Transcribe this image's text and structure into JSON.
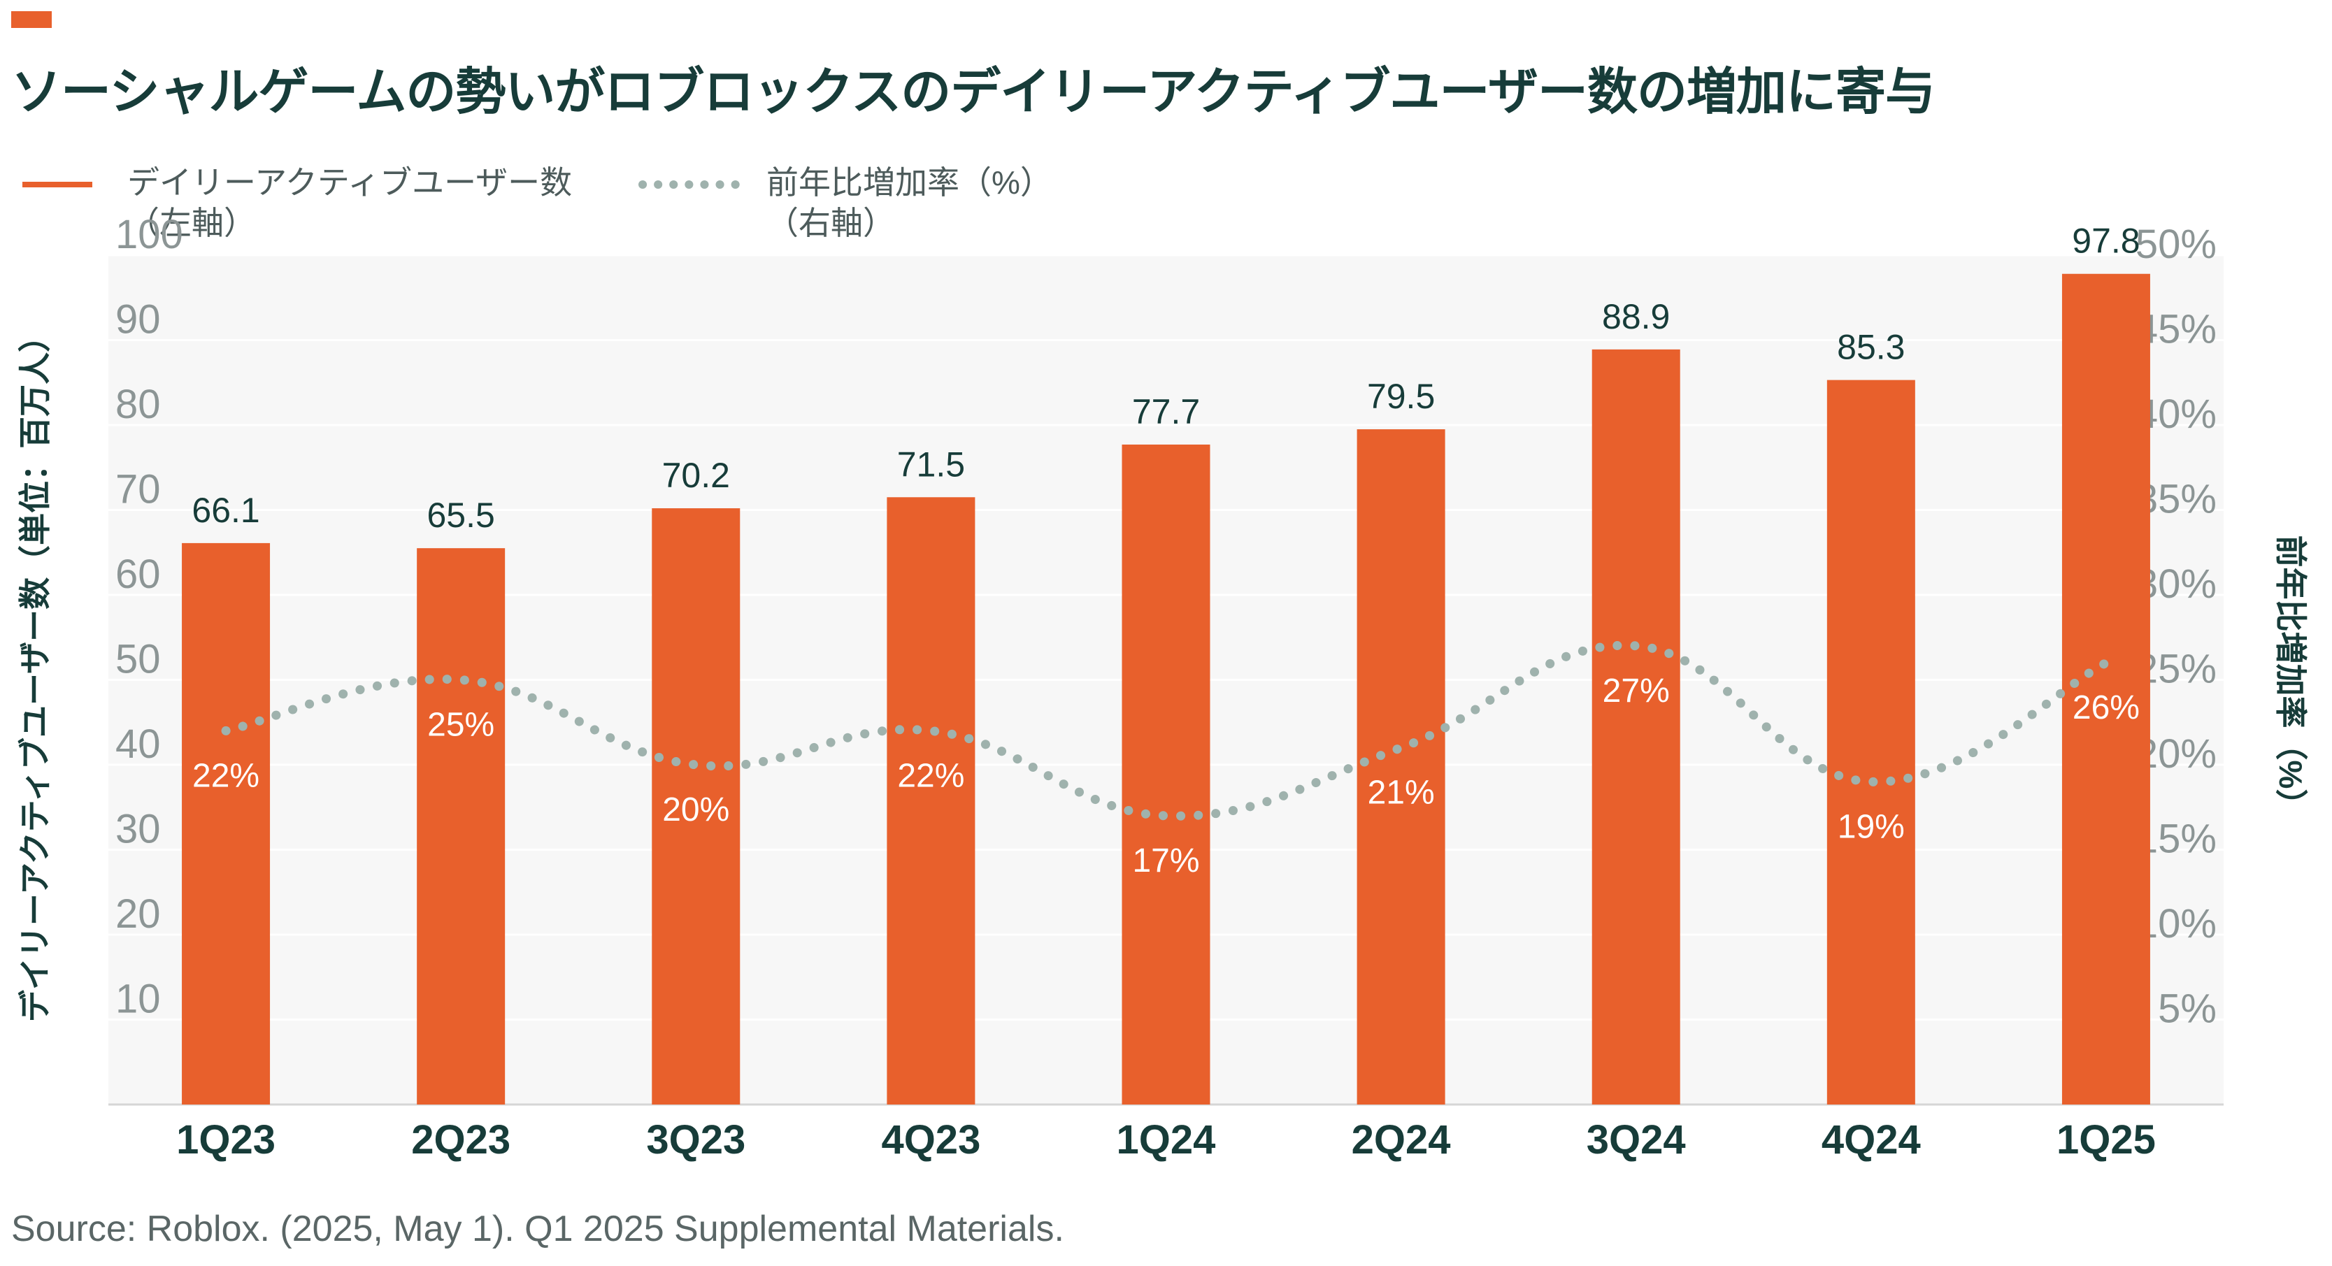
{
  "title": "ソーシャルゲームの勢いがロブロックスのデイリーアクティブユーザー数の増加に寄与",
  "legend": {
    "bar_label": "デイリーアクティブユーザー数",
    "bar_sub": "（左軸）",
    "line_label": "前年比増加率（%）",
    "line_sub": "（右軸）"
  },
  "colors": {
    "bar": "#e8602c",
    "line": "#9fb2ad",
    "plot_bg": "#f7f7f7",
    "grid": "#ffffff",
    "text": "#173c39"
  },
  "source": "Source: Roblox. (2025, May 1). Q1 2025 Supplemental Materials.",
  "chart_data": {
    "type": "bar",
    "categories": [
      "1Q23",
      "2Q23",
      "3Q23",
      "4Q23",
      "1Q24",
      "2Q24",
      "3Q24",
      "4Q24",
      "1Q25"
    ],
    "series": [
      {
        "name": "デイリーアクティブユーザー数",
        "type": "bar",
        "axis": "left",
        "values": [
          66.1,
          65.5,
          70.2,
          71.5,
          77.7,
          79.5,
          88.9,
          85.3,
          97.8
        ],
        "labels": [
          "66.1",
          "65.5",
          "70.2",
          "71.5",
          "77.7",
          "79.5",
          "88.9",
          "85.3",
          "97.8"
        ]
      },
      {
        "name": "前年比増加率（%）",
        "type": "line",
        "style": "dotted",
        "axis": "right",
        "values": [
          22,
          25,
          20,
          22,
          17,
          21,
          27,
          19,
          26
        ],
        "labels": [
          "22%",
          "25%",
          "20%",
          "22%",
          "17%",
          "21%",
          "27%",
          "19%",
          "26%"
        ]
      }
    ],
    "ylabel": "デイリーアクティブユーザー数（単位：百万人）",
    "y2label": "前年比増加率（%）",
    "ylim": [
      0,
      100
    ],
    "y2lim": [
      0,
      50
    ],
    "yticks": [
      "10",
      "20",
      "30",
      "40",
      "50",
      "60",
      "70",
      "80",
      "90",
      "100"
    ],
    "y2ticks": [
      "5%",
      "10%",
      "15%",
      "20%",
      "25%",
      "30%",
      "35%",
      "40%",
      "45%",
      "50%"
    ],
    "grid": true,
    "legend_position": "top-left"
  }
}
